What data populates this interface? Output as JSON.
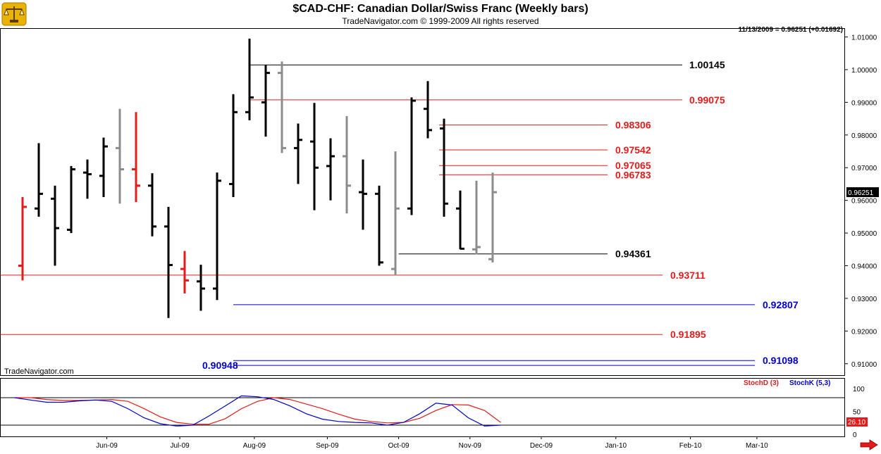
{
  "header": {
    "title": "$CAD-CHF:  Canadian Dollar/Swiss Franc  (Weekly bars)",
    "subtitle": "TradeNavigator.com © 1999-2009 All rights reserved",
    "quote": "11/13/2009 = 0.96251 (+0.01692)",
    "watermark": "TradeNavigator.com",
    "logo_icon": "gold-scales-icon"
  },
  "colors": {
    "up_bar": "#000000",
    "down_bar": "#8c8c8c",
    "highlight_bar": "#e31b1b",
    "red_level": "#e31b1b",
    "blue_level": "#0000cc",
    "black_level": "#000000",
    "stoch_d": "#e31b1b",
    "stoch_k": "#0000cc",
    "price_tag_bg": "#000000",
    "stoch_tag_bg": "#e31b1b",
    "nav_arrow": "#e31b1b"
  },
  "chart_data": {
    "type": "bar",
    "bar_style": "ohlc",
    "title": "$CAD-CHF:  Canadian Dollar/Swiss Franc  (Weekly bars)",
    "y_axis": {
      "ticks": [
        "1.01000",
        "1.00000",
        "0.99000",
        "0.98000",
        "0.97000",
        "0.96000",
        "0.95000",
        "0.94000",
        "0.93000",
        "0.92000",
        "0.91000"
      ],
      "range": [
        0.9065,
        1.0127
      ],
      "current_price_label": "0.96251"
    },
    "x_axis": {
      "ticks": [
        "Jun-09",
        "Jul-09",
        "Aug-09",
        "Sep-09",
        "Oct-09",
        "Nov-09",
        "Dec-09",
        "Jan-10",
        "Feb-10",
        "Mar-10"
      ],
      "tick_week_index": [
        5.2,
        9.7,
        14.3,
        18.8,
        23.2,
        27.6,
        32.0,
        36.6,
        41.2,
        45.3
      ]
    },
    "bars": [
      {
        "i": 0,
        "o": 0.94,
        "h": 0.961,
        "l": 0.9355,
        "c": 0.958,
        "color": "highlight"
      },
      {
        "i": 1,
        "o": 0.9575,
        "h": 0.9775,
        "l": 0.955,
        "c": 0.962,
        "color": "up"
      },
      {
        "i": 2,
        "o": 0.9605,
        "h": 0.9645,
        "l": 0.94,
        "c": 0.9515,
        "color": "up"
      },
      {
        "i": 3,
        "o": 0.951,
        "h": 0.9705,
        "l": 0.95,
        "c": 0.9695,
        "color": "up"
      },
      {
        "i": 4,
        "o": 0.9685,
        "h": 0.9725,
        "l": 0.9605,
        "c": 0.968,
        "color": "up"
      },
      {
        "i": 5,
        "o": 0.9675,
        "h": 0.9792,
        "l": 0.961,
        "c": 0.9765,
        "color": "up"
      },
      {
        "i": 6,
        "o": 0.976,
        "h": 0.988,
        "l": 0.959,
        "c": 0.9695,
        "color": "down"
      },
      {
        "i": 7,
        "o": 0.9695,
        "h": 0.987,
        "l": 0.9595,
        "c": 0.9645,
        "color": "highlight"
      },
      {
        "i": 8,
        "o": 0.9645,
        "h": 0.9683,
        "l": 0.949,
        "c": 0.952,
        "color": "up"
      },
      {
        "i": 9,
        "o": 0.952,
        "h": 0.958,
        "l": 0.924,
        "c": 0.9402,
        "color": "up"
      },
      {
        "i": 10,
        "o": 0.939,
        "h": 0.9445,
        "l": 0.9315,
        "c": 0.9355,
        "color": "highlight"
      },
      {
        "i": 11,
        "o": 0.9352,
        "h": 0.9403,
        "l": 0.9262,
        "c": 0.933,
        "color": "up"
      },
      {
        "i": 12,
        "o": 0.933,
        "h": 0.9685,
        "l": 0.9295,
        "c": 0.966,
        "color": "up"
      },
      {
        "i": 13,
        "o": 0.965,
        "h": 0.9925,
        "l": 0.961,
        "c": 0.987,
        "color": "up"
      },
      {
        "i": 14,
        "o": 0.987,
        "h": 1.0095,
        "l": 0.9845,
        "c": 0.9915,
        "color": "up"
      },
      {
        "i": 15,
        "o": 0.99,
        "h": 1.0015,
        "l": 0.9795,
        "c": 0.999,
        "color": "up"
      },
      {
        "i": 16,
        "o": 0.999,
        "h": 1.0025,
        "l": 0.9745,
        "c": 0.976,
        "color": "down"
      },
      {
        "i": 17,
        "o": 0.976,
        "h": 0.9835,
        "l": 0.965,
        "c": 0.9785,
        "color": "up"
      },
      {
        "i": 18,
        "o": 0.978,
        "h": 0.9898,
        "l": 0.957,
        "c": 0.97,
        "color": "up"
      },
      {
        "i": 19,
        "o": 0.9705,
        "h": 0.979,
        "l": 0.96,
        "c": 0.9735,
        "color": "up"
      },
      {
        "i": 20,
        "o": 0.9735,
        "h": 0.9858,
        "l": 0.956,
        "c": 0.9645,
        "color": "down"
      },
      {
        "i": 21,
        "o": 0.9625,
        "h": 0.9725,
        "l": 0.951,
        "c": 0.962,
        "color": "up"
      },
      {
        "i": 22,
        "o": 0.962,
        "h": 0.9645,
        "l": 0.94,
        "c": 0.941,
        "color": "up"
      },
      {
        "i": 23,
        "o": 0.939,
        "h": 0.975,
        "l": 0.937,
        "c": 0.9575,
        "color": "down"
      },
      {
        "i": 24,
        "o": 0.9575,
        "h": 0.9915,
        "l": 0.9555,
        "c": 0.9905,
        "color": "up"
      },
      {
        "i": 25,
        "o": 0.988,
        "h": 0.9965,
        "l": 0.979,
        "c": 0.9815,
        "color": "up"
      },
      {
        "i": 26,
        "o": 0.982,
        "h": 0.985,
        "l": 0.955,
        "c": 0.959,
        "color": "up"
      },
      {
        "i": 27,
        "o": 0.9575,
        "h": 0.963,
        "l": 0.945,
        "c": 0.9452,
        "color": "up"
      },
      {
        "i": 28,
        "o": 0.945,
        "h": 0.966,
        "l": 0.9435,
        "c": 0.9457,
        "color": "down"
      },
      {
        "i": 29,
        "o": 0.942,
        "h": 0.9685,
        "l": 0.941,
        "c": 0.9625,
        "color": "down"
      }
    ],
    "levels": [
      {
        "value": 1.00145,
        "label": "1.00145",
        "color": "black",
        "from_week": 14.0
      },
      {
        "value": 0.99075,
        "label": "0.99075",
        "color": "red",
        "from_week": 14.0
      },
      {
        "value": 0.98306,
        "label": "0.98306",
        "color": "red",
        "from_week": 25.7
      },
      {
        "value": 0.97542,
        "label": "0.97542",
        "color": "red",
        "from_week": 25.7
      },
      {
        "value": 0.97065,
        "label": "0.97065",
        "color": "red",
        "from_week": 25.7
      },
      {
        "value": 0.96783,
        "label": "0.96783",
        "color": "red",
        "from_week": 25.7
      },
      {
        "value": 0.94361,
        "label": "0.94361",
        "color": "black",
        "from_week": 23.2
      },
      {
        "value": 0.93711,
        "label": "0.93711",
        "color": "red",
        "from_week": -1.5
      },
      {
        "value": 0.92807,
        "label": "0.92807",
        "color": "blue",
        "from_week": 13.0
      },
      {
        "value": 0.91895,
        "label": "0.91895",
        "color": "red",
        "from_week": -1.5
      },
      {
        "value": 0.91098,
        "label": "0.91098",
        "color": "blue",
        "from_week": 13.0
      },
      {
        "value": 0.90948,
        "label": "0.90948",
        "color": "blue",
        "from_week": 13.0
      }
    ],
    "stochastic": {
      "d_label": "StochD (3)",
      "k_label": "StochK (5,3)",
      "ticks": [
        "100",
        "50",
        "0"
      ],
      "reference_lines": [
        80,
        20
      ],
      "current_label": "26.10",
      "stoch_d": [
        80,
        80,
        76,
        74,
        74,
        75,
        76,
        72,
        56,
        38,
        26,
        22,
        22,
        34,
        56,
        72,
        80,
        76,
        66,
        56,
        44,
        33,
        28,
        25,
        26,
        35,
        52,
        65,
        64,
        52,
        26
      ],
      "stoch_k": [
        80,
        75,
        70,
        70,
        73,
        75,
        72,
        56,
        36,
        23,
        18,
        20,
        40,
        62,
        84,
        82,
        76,
        62,
        45,
        33,
        28,
        26,
        25,
        20,
        26,
        45,
        68,
        64,
        36,
        18,
        20
      ]
    }
  }
}
